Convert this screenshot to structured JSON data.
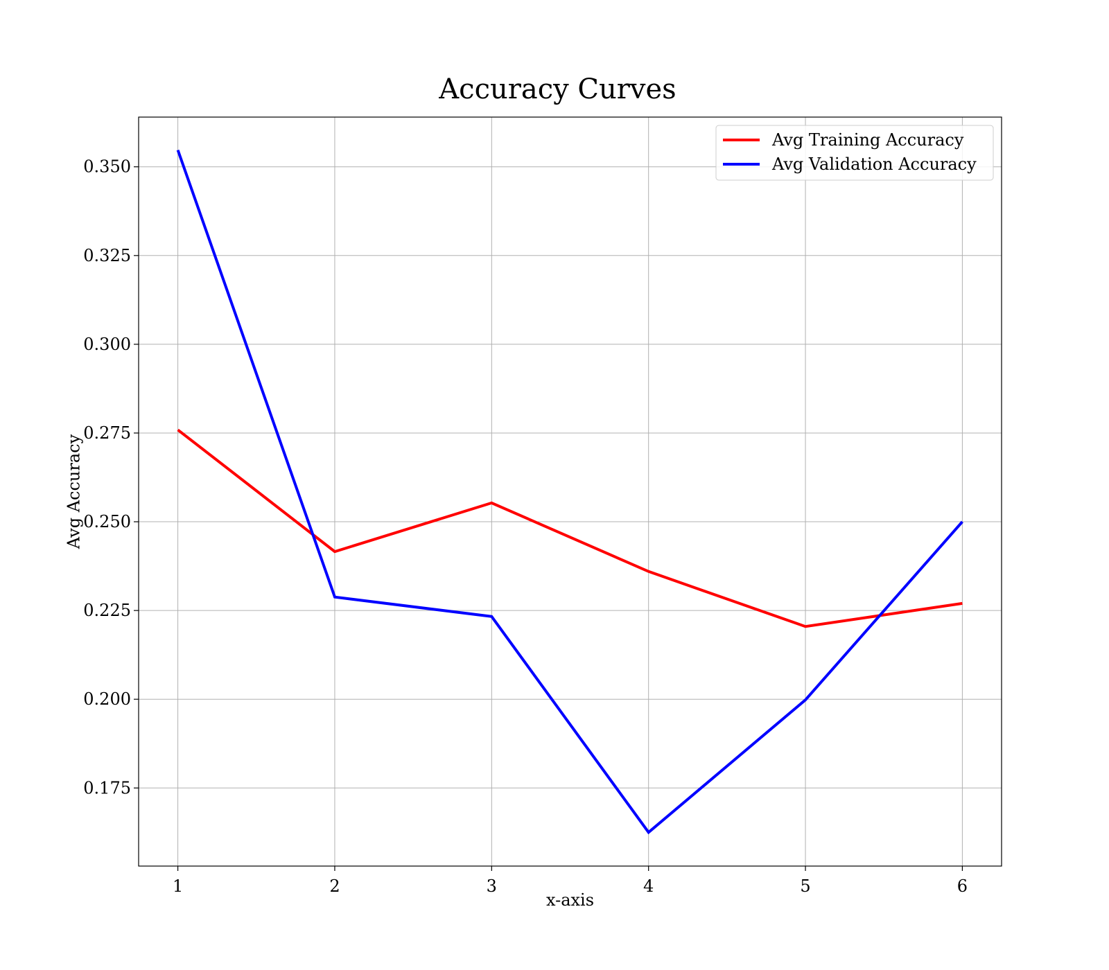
{
  "chart_data": {
    "type": "line",
    "title": "Accuracy Curves",
    "xlabel": "x-axis",
    "ylabel": "Avg Accuracy",
    "x": [
      1,
      2,
      3,
      4,
      5,
      6
    ],
    "xticks": [
      "1",
      "2",
      "3",
      "4",
      "5",
      "6"
    ],
    "yticks": [
      "0.175",
      "0.200",
      "0.225",
      "0.250",
      "0.275",
      "0.300",
      "0.325",
      "0.350"
    ],
    "xlim": [
      0.75,
      6.25
    ],
    "ylim": [
      0.153,
      0.364
    ],
    "grid": true,
    "legend_position": "top-right",
    "series": [
      {
        "name": "Avg Training Accuracy",
        "color": "#ff0000",
        "values": [
          0.2759,
          0.2416,
          0.2553,
          0.236,
          0.2205,
          0.227
        ]
      },
      {
        "name": "Avg Validation Accuracy",
        "color": "#0000ff",
        "values": [
          0.3547,
          0.2288,
          0.2233,
          0.1625,
          0.1998,
          0.25
        ]
      }
    ]
  }
}
